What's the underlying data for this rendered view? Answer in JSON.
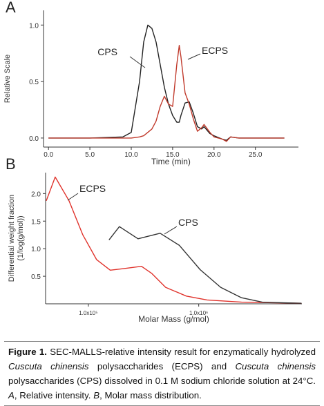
{
  "chart_data": [
    {
      "type": "line",
      "panel": "A",
      "xlabel": "Time (min)",
      "ylabel": "Relative Scale",
      "xlim": [
        -0.6,
        30.2
      ],
      "ylim": [
        -0.08,
        1.13
      ],
      "xticks": [
        {
          "value": 0,
          "label": "0.0"
        },
        {
          "value": 5,
          "label": "5.0"
        },
        {
          "value": 10,
          "label": "10.0"
        },
        {
          "value": 15,
          "label": "15.0"
        },
        {
          "value": 20,
          "label": "20.0"
        },
        {
          "value": 25,
          "label": "25.0"
        }
      ],
      "yticks": [
        {
          "value": 0,
          "label": "0.0"
        },
        {
          "value": 0.5,
          "label": "0.5"
        },
        {
          "value": 1,
          "label": "1.0"
        }
      ],
      "x": [
        0,
        5,
        9,
        10,
        11,
        11.5,
        12,
        12.5,
        13,
        13.5,
        14,
        14.5,
        15,
        15.5,
        15.8,
        16,
        16.5,
        17,
        17.5,
        18,
        18.5,
        18.8,
        19.5,
        20,
        21,
        21.5,
        22,
        23,
        25,
        28.5
      ],
      "series": [
        {
          "name": "CPS",
          "color": "#222222",
          "values": [
            0,
            0,
            0.01,
            0.05,
            0.5,
            0.85,
            1.0,
            0.97,
            0.85,
            0.65,
            0.45,
            0.3,
            0.2,
            0.14,
            0.14,
            0.2,
            0.31,
            0.32,
            0.22,
            0.1,
            0.08,
            0.1,
            0.04,
            0.02,
            -0.01,
            -0.02,
            0.01,
            0,
            0,
            0
          ]
        },
        {
          "name": "ECPS",
          "color": "#c0392b",
          "values": [
            0,
            0,
            0,
            0,
            0.01,
            0.02,
            0.05,
            0.08,
            0.15,
            0.28,
            0.37,
            0.3,
            0.28,
            0.65,
            0.82,
            0.72,
            0.4,
            0.3,
            0.17,
            0.06,
            0.09,
            0.12,
            0.05,
            0.01,
            -0.01,
            -0.03,
            0.01,
            0,
            0,
            0
          ]
        }
      ]
    },
    {
      "type": "line",
      "panel": "B",
      "xlabel": "Molar Mass (g/mol)",
      "ylabel": [
        "Differential weight fraction",
        "(1/log(g/mol))"
      ],
      "xscale": "log",
      "xlim": [
        41000,
        8600000
      ],
      "ylim": [
        0,
        2.38
      ],
      "xticks": [
        {
          "value": 100000,
          "label": "1.0x10⁵"
        },
        {
          "value": 1000000,
          "label": "1.0x10⁶"
        }
      ],
      "yticks": [
        0.5,
        {
          "value": 1,
          "label": "1.0"
        },
        1.5,
        {
          "value": 2,
          "label": "2.0"
        }
      ],
      "series": [
        {
          "name": "ECPS",
          "color": "#e0322b",
          "x": [
            41600,
            50100,
            66800,
            89100,
            119000,
            158000,
            211000,
            303000,
            376000,
            501000,
            772000,
            1190000,
            2440000,
            8530000
          ],
          "values": [
            1.87,
            2.3,
            1.87,
            1.25,
            0.8,
            0.61,
            0.64,
            0.68,
            0.55,
            0.3,
            0.14,
            0.07,
            0.03,
            0.01
          ]
        },
        {
          "name": "CPS",
          "color": "#333333",
          "x": [
            154000,
            191000,
            282000,
            447000,
            668000,
            1030000,
            1580000,
            2440000,
            3760000,
            8530000
          ],
          "values": [
            1.16,
            1.4,
            1.18,
            1.28,
            1.06,
            0.62,
            0.3,
            0.11,
            0.03,
            0.01
          ]
        }
      ]
    }
  ],
  "caption": [
    "Figure 1.",
    " SEC-MALLS-relative intensity result for enzymatically hydrolyzed ",
    "Cuscuta chinensis",
    " polysaccharides (ECPS) and ",
    "Cuscuta chinensis",
    " polysaccharides (CPS) dissolved in 0.1 M sodium chloride solution at 24°C. ",
    "A",
    ", Relative intensity. ",
    "B",
    ", Molar mass distribution."
  ]
}
